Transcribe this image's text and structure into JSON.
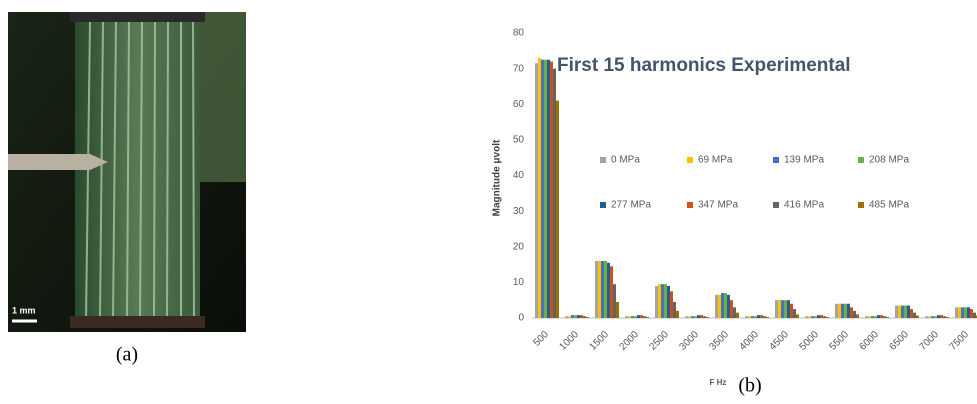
{
  "photo_scale": "1 mm",
  "caption_a": "(a)",
  "caption_b": "(b)",
  "chart_data": {
    "type": "bar",
    "title": "First 15 harmonics Experimental",
    "x_label": "F Hz",
    "y_label": "Magnitude μvolt",
    "categories": [
      "500",
      "1000",
      "1500",
      "2000",
      "2500",
      "3000",
      "3500",
      "4000",
      "4500",
      "5000",
      "5500",
      "6000",
      "6500",
      "7000",
      "7500"
    ],
    "ylim": [
      0,
      80
    ],
    "yticks": [
      0,
      10,
      20,
      30,
      40,
      50,
      60,
      70,
      80
    ],
    "grid": false,
    "series": [
      {
        "name": "0 MPa",
        "color": "#a5a5a5",
        "values": [
          71.5,
          0.5,
          16,
          0.5,
          9,
          0.5,
          6.5,
          0.5,
          5,
          0.5,
          4,
          0.5,
          3.5,
          0.5,
          3
        ]
      },
      {
        "name": "69 MPa",
        "color": "#ffc000",
        "values": [
          73,
          0.5,
          16,
          0.5,
          9.5,
          0.5,
          6.5,
          0.5,
          5,
          0.5,
          4,
          0.5,
          3.5,
          0.5,
          3
        ]
      },
      {
        "name": "139 MPa",
        "color": "#4472c4",
        "values": [
          72.5,
          0.8,
          16,
          0.5,
          9.5,
          0.5,
          7,
          0.5,
          5,
          0.5,
          4,
          0.5,
          3.5,
          0.5,
          3
        ]
      },
      {
        "name": "208 MPa",
        "color": "#70ad47",
        "values": [
          72.5,
          0.8,
          16,
          0.5,
          9.5,
          0.5,
          7,
          0.5,
          5,
          0.5,
          4,
          0.5,
          3.5,
          0.5,
          3
        ]
      },
      {
        "name": "277 MPa",
        "color": "#255e91",
        "values": [
          72.5,
          0.8,
          15.5,
          0.8,
          9,
          0.8,
          6.5,
          0.8,
          5,
          0.8,
          4,
          0.8,
          3.5,
          0.8,
          3
        ]
      },
      {
        "name": "347 MPa",
        "color": "#c9531e",
        "values": [
          72,
          0.8,
          14.5,
          0.8,
          7.5,
          0.8,
          5,
          0.8,
          4,
          0.8,
          3,
          0.8,
          2.5,
          0.8,
          2.5
        ]
      },
      {
        "name": "416 MPa",
        "color": "#636363",
        "values": [
          70,
          0.5,
          9.5,
          0.5,
          4.5,
          0.5,
          3,
          0.5,
          2.5,
          0.5,
          2,
          0.5,
          1.5,
          0.5,
          1.5
        ]
      },
      {
        "name": "485 MPa",
        "color": "#997300",
        "values": [
          61,
          0.3,
          4.5,
          0.3,
          2,
          0.3,
          1.5,
          0.3,
          1,
          0.3,
          1,
          0.3,
          0.7,
          0.3,
          0.7
        ]
      }
    ]
  }
}
